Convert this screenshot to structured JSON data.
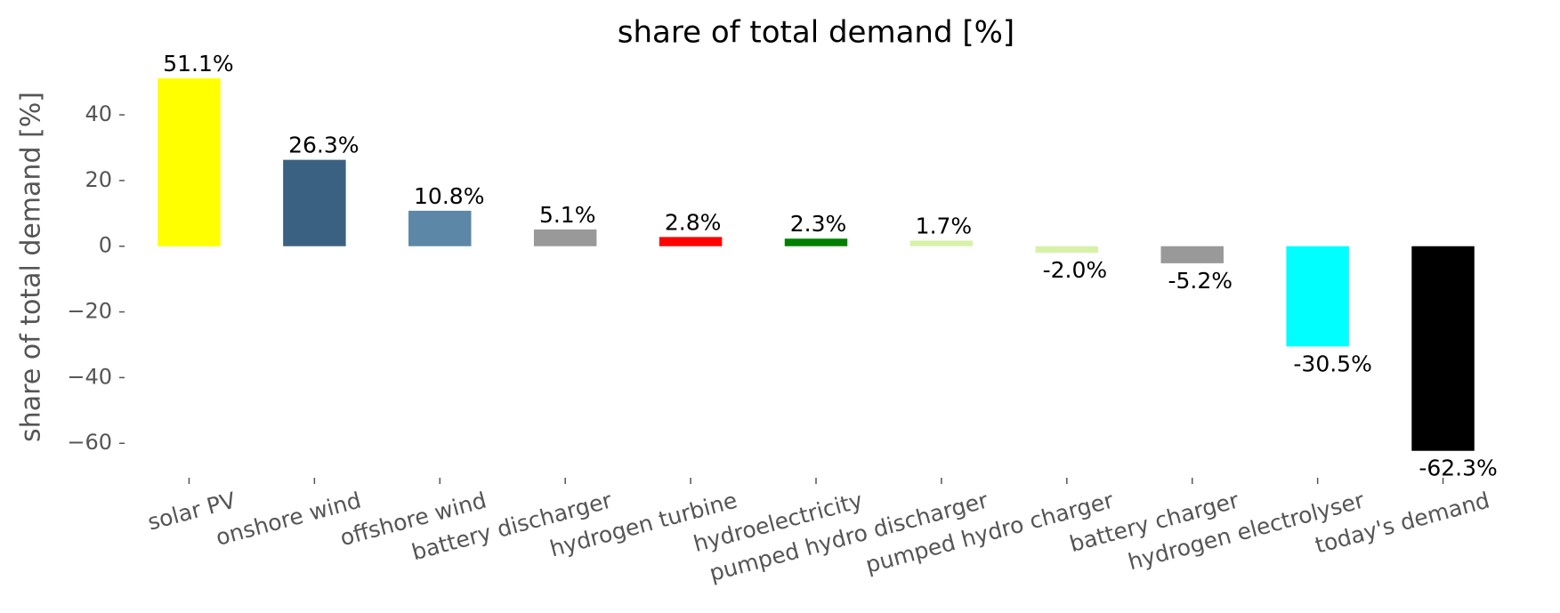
{
  "chart_data": {
    "type": "bar",
    "title": "share of total demand [%]",
    "y_label": "share of total demand [%]",
    "categories": [
      "solar PV",
      "onshore wind",
      "offshore wind",
      "battery discharger",
      "hydrogen turbine",
      "hydroelectricity",
      "pumped hydro discharger",
      "pumped hydro charger",
      "battery charger",
      "hydrogen electrolyser",
      "today's demand"
    ],
    "values": [
      51.1,
      26.3,
      10.8,
      5.1,
      2.8,
      2.3,
      1.7,
      -2.0,
      -5.2,
      -30.5,
      -62.3
    ],
    "value_labels": [
      "51.1%",
      "26.3%",
      "10.8%",
      "5.1%",
      "2.8%",
      "2.3%",
      "1.7%",
      "-2.0%",
      "-5.2%",
      "-30.5%",
      "-62.3%"
    ],
    "colors": [
      "#ffff00",
      "#3b6182",
      "#5d87a6",
      "#999999",
      "#ff0000",
      "#008000",
      "#d7f2a7",
      "#d7f2a7",
      "#999999",
      "#00ffff",
      "#000000"
    ],
    "ylim": [
      -70.5,
      56
    ],
    "yticks": [
      {
        "value": -60,
        "label": "−60"
      },
      {
        "value": -40,
        "label": "−40"
      },
      {
        "value": -20,
        "label": "−20"
      },
      0,
      20,
      40
    ]
  }
}
